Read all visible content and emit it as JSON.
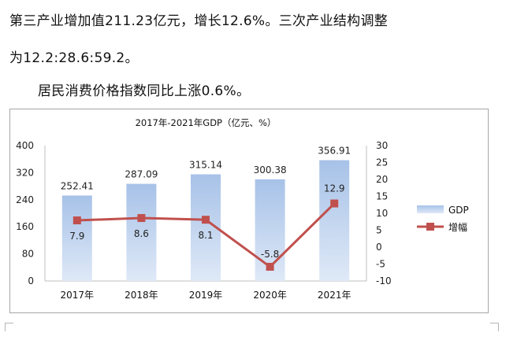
{
  "document": {
    "line1": "第三产业增加值211.23亿元，增长12.6%。三次产业结构调整",
    "line2": "为12.2:28.6:59.2。",
    "line3": "居民消费价格指数同比上涨0.6%。"
  },
  "colors": {
    "bar_top": "#a7c2e8",
    "bar_bottom": "#dfe9f7",
    "line": "#c0504d"
  },
  "chart_data": {
    "type": "bar+line",
    "title": "2017年-2021年GDP（亿元、%）",
    "categories": [
      "2017年",
      "2018年",
      "2019年",
      "2020年",
      "2021年"
    ],
    "series": [
      {
        "name": "GDP",
        "type": "bar",
        "axis": "left",
        "values": [
          252.41,
          287.09,
          315.14,
          300.38,
          356.91
        ],
        "labels": [
          "252.41",
          "287.09",
          "315.14",
          "300.38",
          "356.91"
        ]
      },
      {
        "name": "增幅",
        "type": "line",
        "axis": "right",
        "values": [
          7.9,
          8.6,
          8.1,
          -5.8,
          12.9
        ],
        "labels": [
          "7.9",
          "8.6",
          "8.1",
          "-5.8",
          "12.9"
        ]
      }
    ],
    "y_left": {
      "min": 0,
      "max": 400,
      "ticks": [
        "0",
        "80",
        "160",
        "240",
        "320",
        "400"
      ]
    },
    "y_right": {
      "min": -10,
      "max": 30,
      "ticks": [
        "-10",
        "-5",
        "0",
        "5",
        "10",
        "15",
        "20",
        "25",
        "30"
      ]
    },
    "legend_position": "right",
    "grid": false
  }
}
